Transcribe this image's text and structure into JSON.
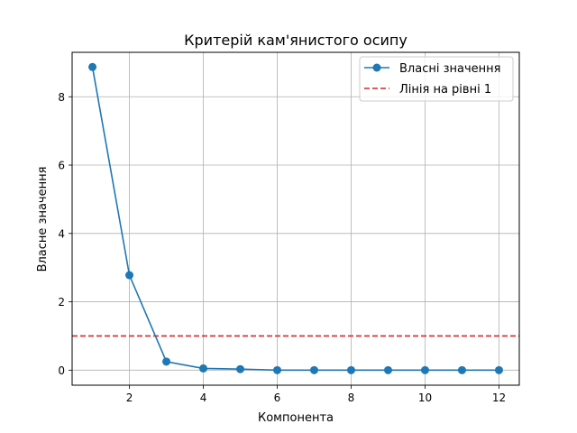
{
  "chart_data": {
    "type": "line",
    "title": "Критерій кам'янистого осипу",
    "xlabel": "Компонента",
    "ylabel": "Власне значення",
    "xlim": [
      0.45,
      12.55
    ],
    "ylim": [
      -0.44,
      9.3
    ],
    "xticks": [
      2,
      4,
      6,
      8,
      10,
      12
    ],
    "yticks": [
      0,
      2,
      4,
      6,
      8
    ],
    "grid": true,
    "legend_position": "top-right",
    "series": [
      {
        "name": "Власні значення",
        "color": "#1f77b4",
        "marker": "circle",
        "line_style": "solid",
        "x": [
          1,
          2,
          3,
          4,
          5,
          6,
          7,
          8,
          9,
          10,
          11,
          12
        ],
        "y": [
          8.87,
          2.78,
          0.25,
          0.05,
          0.03,
          0.0,
          0.0,
          0.0,
          0.0,
          0.0,
          0.0,
          0.0
        ]
      }
    ],
    "reference_line": {
      "name": "Лінія на рівні 1",
      "y": 1,
      "color": "#d62728",
      "line_style": "dashed"
    }
  }
}
